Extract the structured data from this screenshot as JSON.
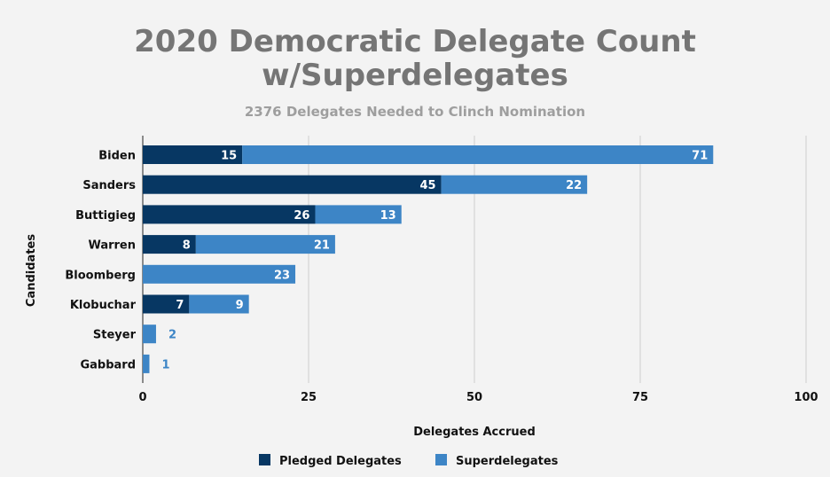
{
  "chart_data": {
    "type": "bar",
    "orientation": "horizontal",
    "stacked": true,
    "title_line1": "2020 Democratic Delegate Count",
    "title_line2": "w/Superdelegates",
    "subtitle": "2376 Delegates Needed to Clinch Nomination",
    "xlabel": "Delegates Accrued",
    "ylabel": "Candidates",
    "xlim": [
      0,
      100
    ],
    "xticks": [
      0,
      25,
      50,
      75,
      100
    ],
    "grid": true,
    "legend_position": "bottom",
    "categories": [
      "Biden",
      "Sanders",
      "Buttigieg",
      "Warren",
      "Bloomberg",
      "Klobuchar",
      "Steyer",
      "Gabbard"
    ],
    "series": [
      {
        "name": "Pledged Delegates",
        "color": "#073763",
        "values": [
          15,
          45,
          26,
          8,
          0,
          7,
          0,
          0
        ]
      },
      {
        "name": "Superdelegates",
        "color": "#3d85c6",
        "values": [
          71,
          22,
          13,
          21,
          23,
          9,
          2,
          1
        ]
      }
    ]
  }
}
